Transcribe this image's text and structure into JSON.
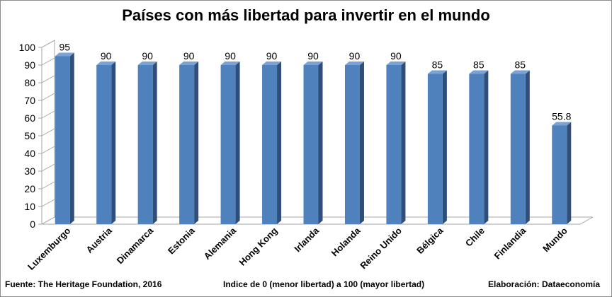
{
  "chart_data": {
    "type": "bar",
    "title": "Países con más libertad para invertir en el mundo",
    "categories": [
      "Luxemburgo",
      "Austria",
      "Dinamarca",
      "Estonia",
      "Alemania",
      "Hong Kong",
      "Irlanda",
      "Holanda",
      "Reino Unido",
      "Bélgica",
      "Chile",
      "Finlandia",
      "Mundo"
    ],
    "values": [
      95,
      90,
      90,
      90,
      90,
      90,
      90,
      90,
      90,
      85,
      85,
      85,
      55.8
    ],
    "value_labels": [
      "95",
      "90",
      "90",
      "90",
      "90",
      "90",
      "90",
      "90",
      "90",
      "85",
      "85",
      "85",
      "55.8"
    ],
    "y_ticks": [
      "0",
      "10",
      "20",
      "30",
      "40",
      "50",
      "60",
      "70",
      "80",
      "90",
      "100"
    ],
    "ylim": [
      0,
      100
    ],
    "grid": false,
    "style": "3d-bar",
    "bar_colors": {
      "front": "#4f81bd",
      "side": "#2f4f7a",
      "top": "#7aa2d4"
    },
    "wall_color": "#a6a6a6"
  },
  "footer": {
    "source": "Fuente: The Heritage Foundation, 2016",
    "caption": "Indice de 0 (menor libertad) a 100  (mayor libertad)",
    "credit": "Elaboración: Dataeconomía"
  }
}
